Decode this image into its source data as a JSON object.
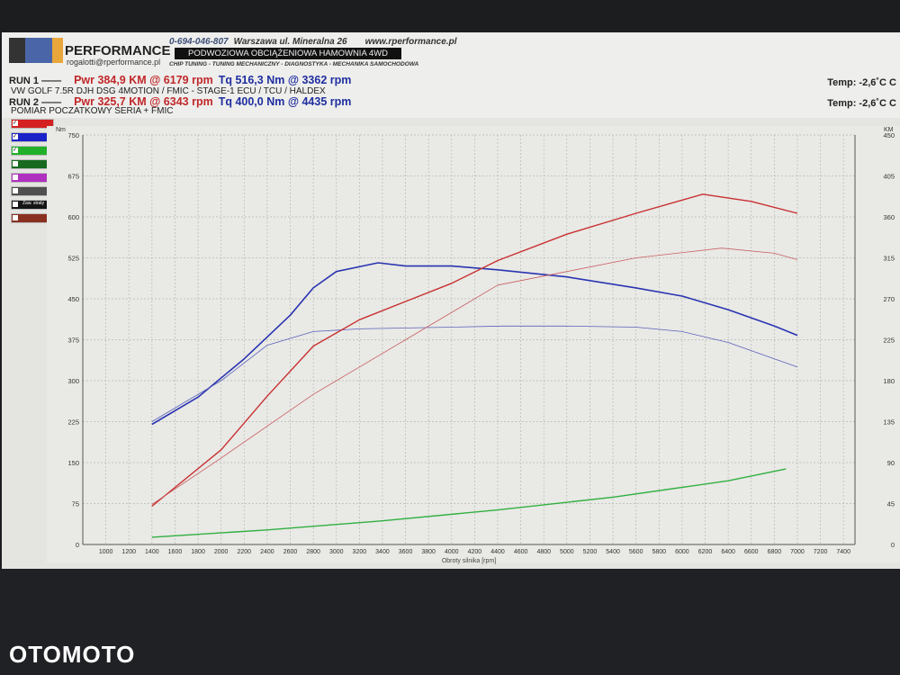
{
  "header": {
    "brand": "PERFORMANCE",
    "email": "rogalotti@rperformance.pl",
    "phone": "0-694-046-807",
    "address": "Warszawa ul. Mineralna 26",
    "website": "www.rperformance.pl",
    "banner": "PODWOZIOWA OBCIĄŻENIOWA HAMOWNIA 4WD",
    "services": "CHIP TUNING - TUNING MECHANICZNY - DIAGNOSTYKA - MECHANIKA SAMOCHODOWA"
  },
  "runs": [
    {
      "label": "RUN 1",
      "line": "——",
      "power": "Pwr 384,9 KM @ 6179 rpm",
      "torque": "Tq 516,3 Nm @ 3362 rpm",
      "description": "VW GOLF 7.5R DJH DSG 4MOTION / FMIC - STAGE-1 ECU / TCU / HALDEX",
      "temp": "Temp: -2,6˚C C"
    },
    {
      "label": "RUN 2",
      "line": "——",
      "power": "Pwr 325,7 KM @ 6343 rpm",
      "torque": "Tq 400,0 Nm @ 4435 rpm",
      "description": "POMIAR POCZATKOWY SERIA + FMIC",
      "temp": "Temp: -2,6˚C C"
    }
  ],
  "legend": [
    {
      "color": "#d42020",
      "checked": true,
      "text": ""
    },
    {
      "color": "#1a22c8",
      "checked": true,
      "text": ""
    },
    {
      "color": "#22b02a",
      "checked": true,
      "text": ""
    },
    {
      "color": "#186a20",
      "checked": false,
      "text": ""
    },
    {
      "color": "#b030c0",
      "checked": false,
      "text": ""
    },
    {
      "color": "#505050",
      "checked": false,
      "text": ""
    },
    {
      "color": "#151515",
      "checked": false,
      "text": "Zaw. straty"
    },
    {
      "color": "#8a3020",
      "checked": false,
      "text": ""
    }
  ],
  "watermark": "OTOMOTO",
  "chart_data": {
    "type": "line",
    "xlabel": "Obroty silnika [rpm]",
    "ylabel_left": "Nm",
    "ylabel_right": "KM",
    "xlim": [
      800,
      7500
    ],
    "ylim_left": [
      0,
      750
    ],
    "ylim_right": [
      0,
      450
    ],
    "x_ticks": [
      1000,
      1200,
      1400,
      1600,
      1800,
      2000,
      2200,
      2400,
      2600,
      2800,
      3000,
      3200,
      3400,
      3600,
      3800,
      4000,
      4200,
      4400,
      4600,
      4800,
      5000,
      5200,
      5400,
      5600,
      5800,
      6000,
      6200,
      6400,
      6600,
      6800,
      7000,
      7200,
      7400
    ],
    "y_ticks_left": [
      0,
      75,
      150,
      225,
      300,
      375,
      450,
      525,
      600,
      675,
      750
    ],
    "y_ticks_right": [
      0,
      45,
      90,
      135,
      180,
      225,
      270,
      315,
      360,
      405,
      450
    ],
    "grid": true,
    "series": [
      {
        "axis": "left",
        "color": "#2a34b0",
        "width": 1.6,
        "x": [
          1400,
          1800,
          2200,
          2600,
          2800,
          3000,
          3362,
          3600,
          4000,
          4400,
          5000,
          5600,
          6000,
          6400,
          6800,
          7000
        ],
        "y": [
          220,
          270,
          340,
          420,
          470,
          500,
          516,
          510,
          510,
          503,
          490,
          470,
          455,
          430,
          400,
          383
        ]
      },
      {
        "axis": "left",
        "color": "#5a62b8",
        "width": 0.8,
        "x": [
          1400,
          2000,
          2400,
          2800,
          3200,
          4000,
          4435,
          5000,
          5600,
          6000,
          6400,
          6800,
          7000
        ],
        "y": [
          225,
          300,
          365,
          390,
          395,
          398,
          400,
          400,
          398,
          390,
          370,
          340,
          325
        ]
      },
      {
        "axis": "right",
        "color": "#c83030",
        "width": 1.4,
        "x": [
          1400,
          2000,
          2400,
          2800,
          3200,
          3600,
          4000,
          4400,
          5000,
          5600,
          6179,
          6600,
          7000
        ],
        "y": [
          42,
          104,
          163,
          218,
          247,
          267,
          287,
          312,
          341,
          364,
          384.9,
          377,
          364
        ]
      },
      {
        "axis": "right",
        "color": "#c86060",
        "width": 0.8,
        "x": [
          1400,
          2000,
          2800,
          3600,
          4400,
          5000,
          5600,
          6343,
          6800,
          7000
        ],
        "y": [
          44,
          95,
          165,
          225,
          285,
          300,
          315,
          325.7,
          320,
          313
        ]
      },
      {
        "axis": "right",
        "color": "#30b040",
        "width": 1.4,
        "x": [
          1400,
          2400,
          3400,
          4400,
          5400,
          6400,
          6900
        ],
        "y": [
          8,
          16,
          26,
          38,
          52,
          70,
          83
        ]
      }
    ]
  }
}
